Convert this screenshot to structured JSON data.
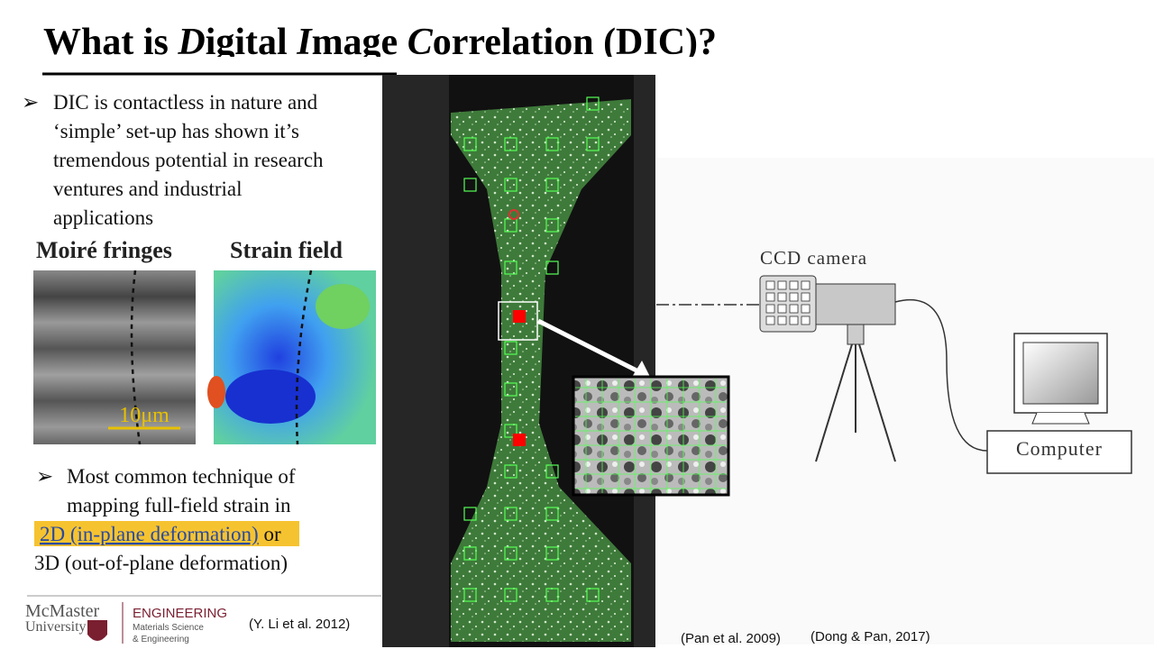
{
  "title": {
    "parts": [
      "What is ",
      "D",
      "igital ",
      "I",
      "mage ",
      "C",
      "orrelation (DIC)?"
    ]
  },
  "bullets": [
    {
      "lines": [
        "DIC is contactless in nature and",
        "‘simple’ set-up has shown it’s",
        "tremendous potential in research",
        "ventures and industrial",
        "applications"
      ]
    },
    {
      "lines": [
        "Most common technique of",
        "mapping full-field strain in"
      ],
      "highlight": "2D (in-plane deformation)",
      "after_highlight": " or",
      "last_line": "3D (out-of-plane deformation)"
    }
  ],
  "figure_left": {
    "moire_label": "Moiré fringes",
    "strain_label": "Strain field",
    "scale_bar": "10μm",
    "citation": "(Y. Li et al. 2012)"
  },
  "figure_right": {
    "camera_label": "CCD camera",
    "computer_label": "Computer",
    "citation_1": "(Pan et al. 2009)",
    "citation_2": "(Dong & Pan, 2017)"
  },
  "logo": {
    "university_1": "McMaster",
    "university_2": "University",
    "faculty": "ENGINEERING",
    "dept_1": "Materials Science",
    "dept_2": "& Engineering"
  }
}
